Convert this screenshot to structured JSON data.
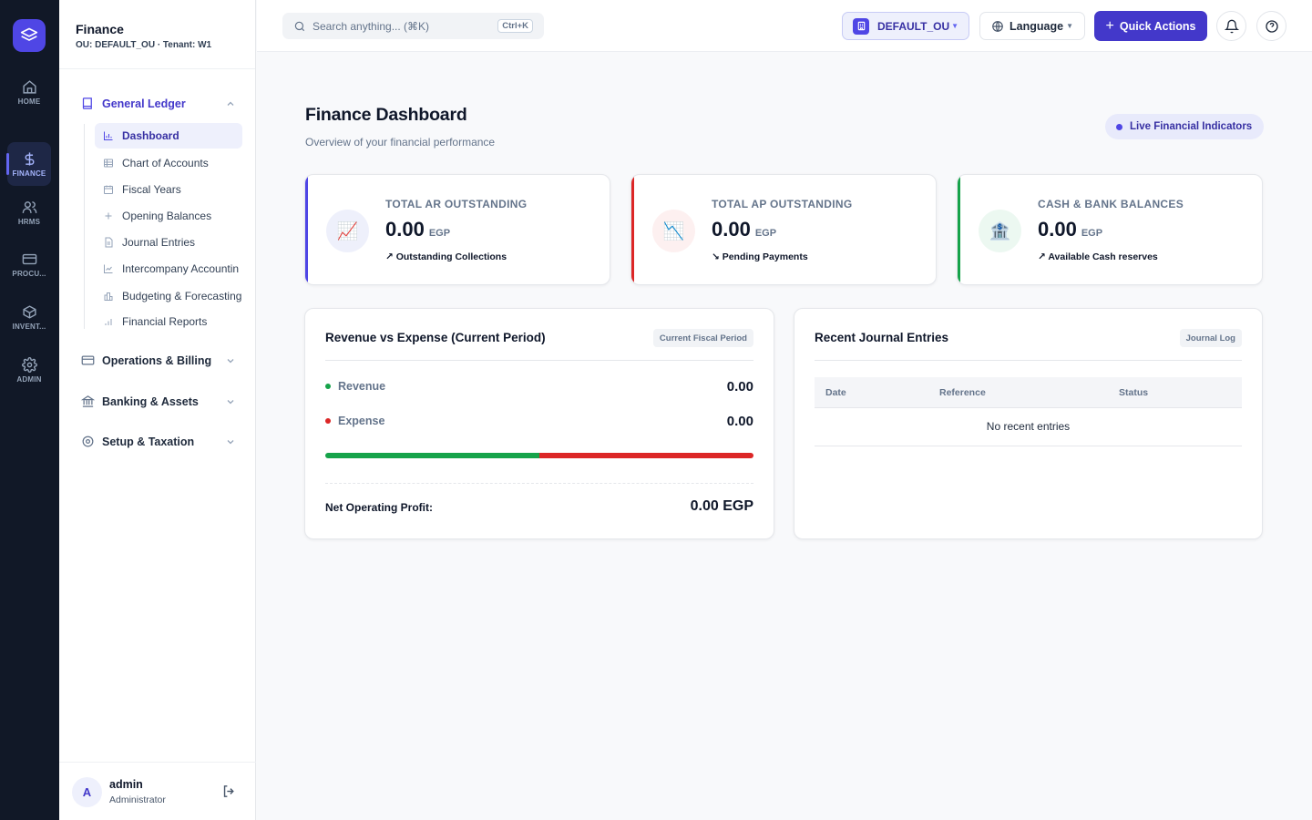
{
  "rail": {
    "items": [
      {
        "label": "HOME",
        "icon": "home-icon"
      },
      {
        "label": "FINANCE",
        "icon": "dollar-icon"
      },
      {
        "label": "HRMS",
        "icon": "users-icon"
      },
      {
        "label": "PROCU...",
        "icon": "card-icon"
      },
      {
        "label": "INVENT...",
        "icon": "box-icon"
      },
      {
        "label": "ADMIN",
        "icon": "gear-icon"
      }
    ]
  },
  "sidebar": {
    "title": "Finance",
    "subtitle": "OU: DEFAULT_OU · Tenant: W1",
    "groups": [
      {
        "label": "General Ledger",
        "icon": "book-icon",
        "open": true
      },
      {
        "label": "Operations & Billing",
        "icon": "card-icon",
        "open": false
      },
      {
        "label": "Banking & Assets",
        "icon": "bank-icon",
        "open": false
      },
      {
        "label": "Setup & Taxation",
        "icon": "gear-icon",
        "open": false
      }
    ],
    "items": [
      {
        "label": "Dashboard",
        "icon": "bar-chart-icon",
        "active": true
      },
      {
        "label": "Chart of Accounts",
        "icon": "table-icon"
      },
      {
        "label": "Fiscal Years",
        "icon": "calendar-icon"
      },
      {
        "label": "Opening Balances",
        "icon": "plus-icon"
      },
      {
        "label": "Journal Entries",
        "icon": "document-icon"
      },
      {
        "label": "Intercompany Accountin",
        "icon": "line-chart-icon"
      },
      {
        "label": "Budgeting & Forecasting",
        "icon": "building-chart-icon"
      },
      {
        "label": "Financial Reports",
        "icon": "signal-icon"
      }
    ],
    "user": {
      "initial": "A",
      "name": "admin",
      "role": "Administrator"
    }
  },
  "topbar": {
    "search_placeholder": "Search anything... (⌘K)",
    "shortcut": "Ctrl+K",
    "ou_label": "DEFAULT_OU",
    "language_label": "Language",
    "quick_actions_label": "Quick Actions"
  },
  "main": {
    "title": "Finance Dashboard",
    "subtitle": "Overview of your financial performance",
    "live_badge": "Live Financial Indicators",
    "kpis": [
      {
        "label": "TOTAL AR OUTSTANDING",
        "value": "0.00",
        "currency": "EGP",
        "note": "↗ Outstanding Collections",
        "icon": "📈",
        "accent": "#4f46e5",
        "icon_bg": "#eef0fb"
      },
      {
        "label": "TOTAL AP OUTSTANDING",
        "value": "0.00",
        "currency": "EGP",
        "note": "↘ Pending Payments",
        "icon": "📉",
        "accent": "#dc2626",
        "icon_bg": "#fdf0f0"
      },
      {
        "label": "CASH & BANK BALANCES",
        "value": "0.00",
        "currency": "EGP",
        "note": "↗ Available Cash reserves",
        "icon": "🏦",
        "accent": "#16a34a",
        "icon_bg": "#ecf8f1"
      }
    ],
    "revenue_card": {
      "title": "Revenue vs Expense (Current Period)",
      "tag": "Current Fiscal Period",
      "revenue_label": "Revenue",
      "revenue_value": "0.00",
      "expense_label": "Expense",
      "expense_value": "0.00",
      "revenue_share": 0.5,
      "revenue_color": "#16a34a",
      "expense_color": "#dc2626",
      "net_label": "Net Operating Profit:",
      "net_value": "0.00 EGP"
    },
    "journal_card": {
      "title": "Recent Journal Entries",
      "tag": "Journal Log",
      "columns": [
        "Date",
        "Reference",
        "Status"
      ],
      "empty_text": "No recent entries"
    }
  }
}
